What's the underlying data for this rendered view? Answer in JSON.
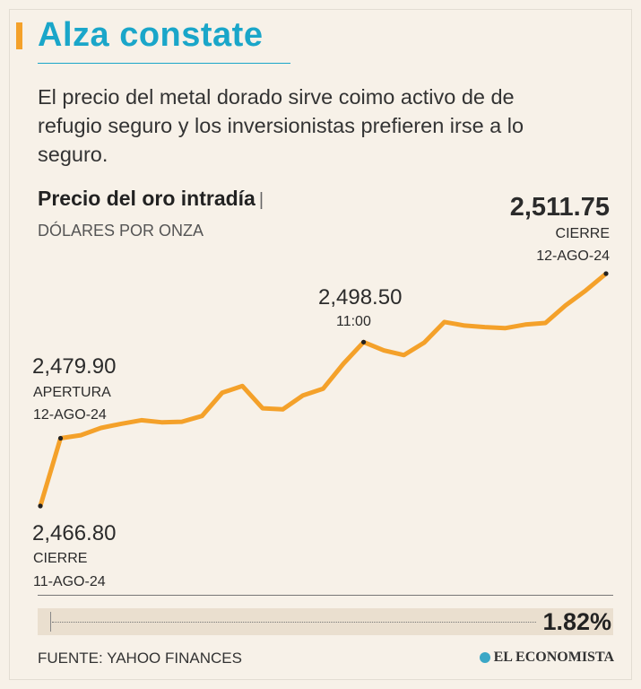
{
  "header": {
    "title": "Alza constate",
    "description": "El precio del metal dorado sirve coimo activo de de refugio seguro y los inversionistas prefieren irse a lo seguro.",
    "accent_color": "#f4a12a",
    "title_color": "#1aa6c9"
  },
  "chart_data": {
    "type": "line",
    "title": "Precio del oro intradía",
    "title_separator": "|",
    "unit_label": "DÓLARES POR ONZA",
    "line_color": "#f4a12a",
    "ylim": [
      2466.8,
      2511.75
    ],
    "grid": false,
    "legend": "none",
    "x": [
      "11-AGO-24 cierre",
      "12-AGO-24 apertura",
      "p2",
      "p3",
      "p4",
      "p5",
      "p6",
      "p7",
      "p8",
      "p9",
      "p10",
      "p11",
      "p12",
      "p13",
      "p14",
      "p15",
      "11:00",
      "p17",
      "p18",
      "p19",
      "p20",
      "p21",
      "p22",
      "p23",
      "p24",
      "p25",
      "p26",
      "p27",
      "12-AGO-24 cierre"
    ],
    "values": [
      2466.8,
      2479.9,
      2480.5,
      2481.9,
      2482.7,
      2483.4,
      2483.0,
      2483.1,
      2484.2,
      2488.7,
      2490.0,
      2485.7,
      2485.5,
      2488.2,
      2489.5,
      2494.3,
      2498.5,
      2496.9,
      2496.0,
      2498.4,
      2502.4,
      2501.7,
      2501.4,
      2501.2,
      2501.9,
      2502.2,
      2505.6,
      2508.5,
      2511.75
    ]
  },
  "annotations": {
    "close_prev": {
      "value": "2,466.80",
      "line1": "CIERRE",
      "line2": "11-AGO-24"
    },
    "open": {
      "value": "2,479.90",
      "line1": "APERTURA",
      "line2": "12-AGO-24"
    },
    "mid": {
      "value": "2,498.50",
      "line1": "11:00"
    },
    "close": {
      "value": "2,511.75",
      "line1": "CIERRE",
      "line2": "12-AGO-24"
    }
  },
  "change": {
    "value": "1.82%"
  },
  "footer": {
    "source": "FUENTE: YAHOO FINANCES",
    "logo_text": "EL ECONOMISTA"
  }
}
